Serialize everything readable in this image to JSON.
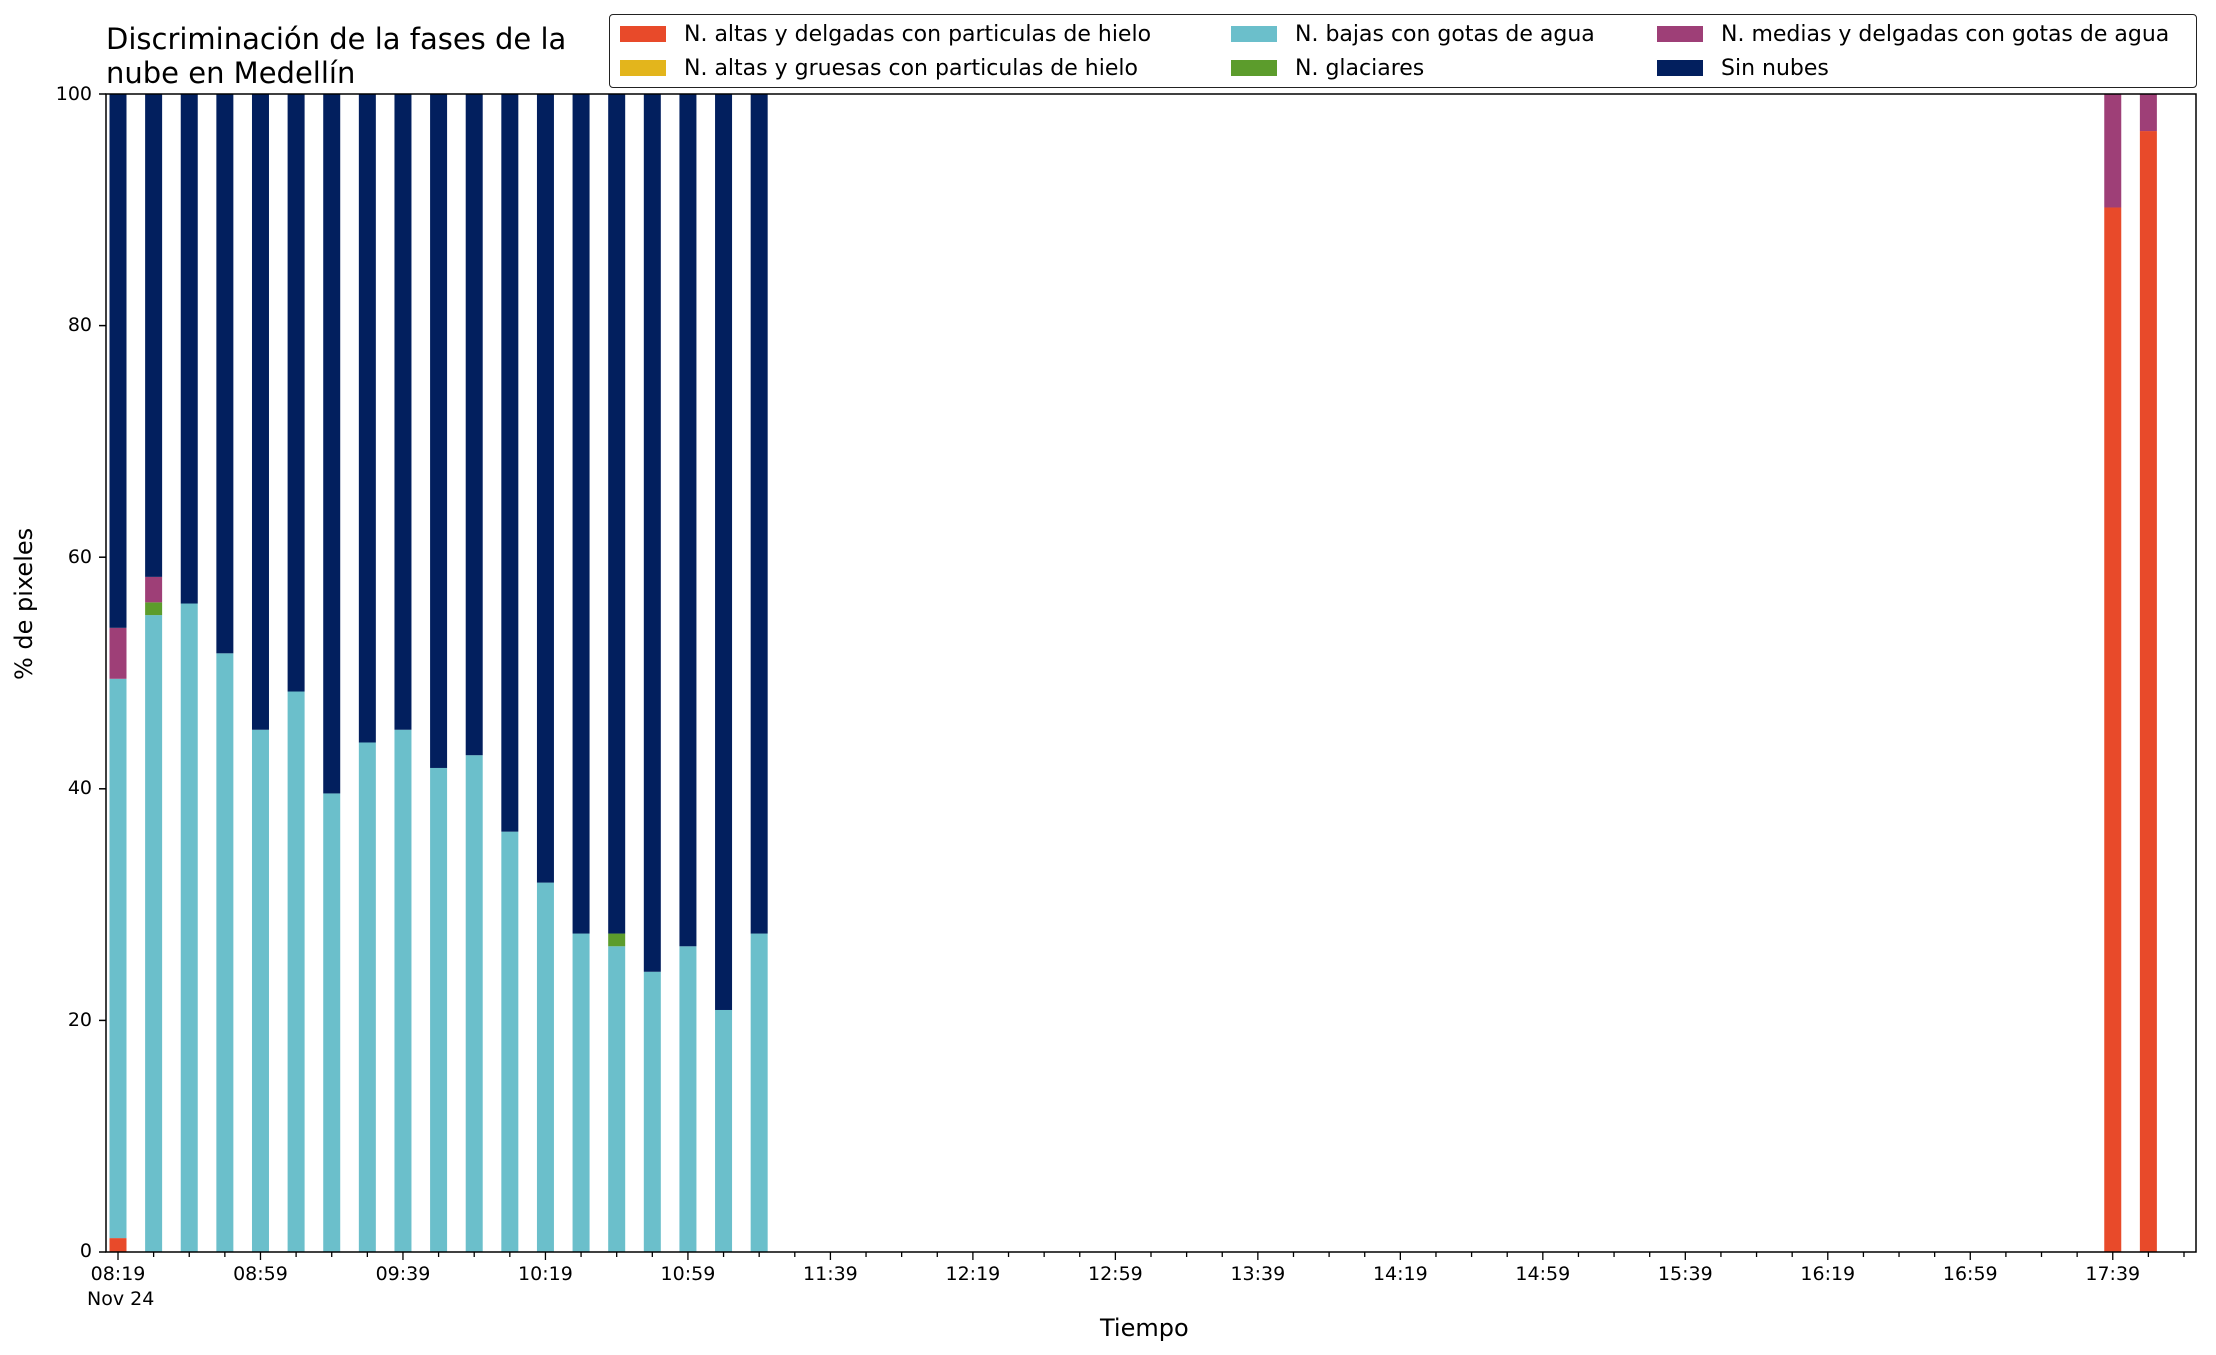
{
  "chart_data": {
    "type": "bar",
    "stacked": true,
    "title": "Discriminación de la fases de la nube en Medellín",
    "title_lines": [
      "Discriminación de la fases de la",
      "nube en Medellín"
    ],
    "xlabel": "Tiempo",
    "ylabel": "% de pixeles",
    "ylim": [
      0,
      100
    ],
    "yticks": [
      0,
      20,
      40,
      60,
      80,
      100
    ],
    "xticks": [
      "08:19",
      "08:59",
      "09:39",
      "10:19",
      "10:59",
      "11:39",
      "12:19",
      "12:59",
      "13:39",
      "14:19",
      "14:59",
      "15:39",
      "16:19",
      "16:59",
      "17:39"
    ],
    "xtick_sublabel": "Nov 24",
    "legend_position": "top-right",
    "grid": false,
    "categories": [
      "08:19",
      "08:29",
      "08:39",
      "08:49",
      "08:59",
      "09:09",
      "09:19",
      "09:29",
      "09:39",
      "09:49",
      "09:59",
      "10:09",
      "10:19",
      "10:29",
      "10:39",
      "10:49",
      "10:59",
      "11:09",
      "11:19",
      "17:39",
      "17:49"
    ],
    "series": [
      {
        "name": "N. altas y delgadas con particulas de hielo",
        "color": "#e84a2a",
        "values": [
          1.2,
          0,
          0,
          0,
          0,
          0,
          0,
          0,
          0,
          0,
          0,
          0,
          0,
          0,
          0,
          0,
          0,
          0,
          0,
          90.2,
          96.8
        ]
      },
      {
        "name": "N. altas y gruesas con particulas de hielo",
        "color": "#e3b51c",
        "values": [
          0,
          0,
          0,
          0,
          0,
          0,
          0,
          0,
          0,
          0,
          0,
          0,
          0,
          0,
          0,
          0,
          0,
          0,
          0,
          0,
          0
        ]
      },
      {
        "name": "N. bajas con gotas de agua",
        "color": "#6bbfcb",
        "values": [
          48.3,
          55.0,
          56.0,
          51.7,
          45.1,
          48.4,
          39.6,
          44.0,
          45.1,
          41.8,
          42.9,
          36.3,
          31.9,
          27.5,
          26.4,
          24.2,
          26.4,
          20.9,
          27.5,
          0,
          0
        ]
      },
      {
        "name": "N. glaciares",
        "color": "#5c9c2c",
        "values": [
          0,
          1.1,
          0,
          0,
          0,
          0,
          0,
          0,
          0,
          0,
          0,
          0,
          0,
          0,
          1.1,
          0,
          0,
          0,
          0,
          0,
          0
        ]
      },
      {
        "name": "N. medias y delgadas con gotas de agua",
        "color": "#9e3f77",
        "values": [
          4.4,
          2.2,
          0,
          0,
          0,
          0,
          0,
          0,
          0,
          0,
          0,
          0,
          0,
          0,
          0,
          0,
          0,
          0,
          0,
          9.8,
          3.2
        ]
      },
      {
        "name": "Sin nubes",
        "color": "#021f5e",
        "values": [
          46.1,
          41.7,
          44.0,
          48.3,
          54.9,
          51.6,
          60.4,
          56.0,
          54.9,
          58.2,
          57.1,
          63.7,
          68.1,
          72.5,
          72.5,
          75.8,
          73.6,
          79.1,
          72.5,
          0,
          0
        ]
      }
    ]
  }
}
